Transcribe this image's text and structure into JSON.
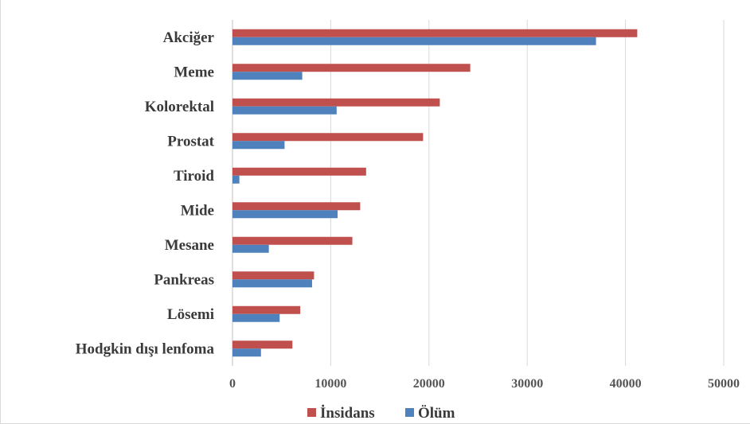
{
  "chart_data": {
    "type": "bar",
    "orientation": "horizontal",
    "categories": [
      "Akciğer",
      "Meme",
      "Kolorektal",
      "Prostat",
      "Tiroid",
      "Mide",
      "Mesane",
      "Pankreas",
      "Lösemi",
      "Hodgkin dışı lenfoma"
    ],
    "series": [
      {
        "name": "İnsidans",
        "color": "#c0504d",
        "values": [
          41200,
          24200,
          21100,
          19400,
          13600,
          13000,
          12200,
          8300,
          6900,
          6100
        ]
      },
      {
        "name": "Ölüm",
        "color": "#4f81bd",
        "values": [
          37000,
          7100,
          10600,
          5300,
          700,
          10700,
          3700,
          8100,
          4800,
          2900
        ]
      }
    ],
    "xlim": [
      0,
      50000
    ],
    "xticks": [
      0,
      10000,
      20000,
      30000,
      40000,
      50000
    ],
    "grid": true,
    "legend_position": "bottom"
  }
}
